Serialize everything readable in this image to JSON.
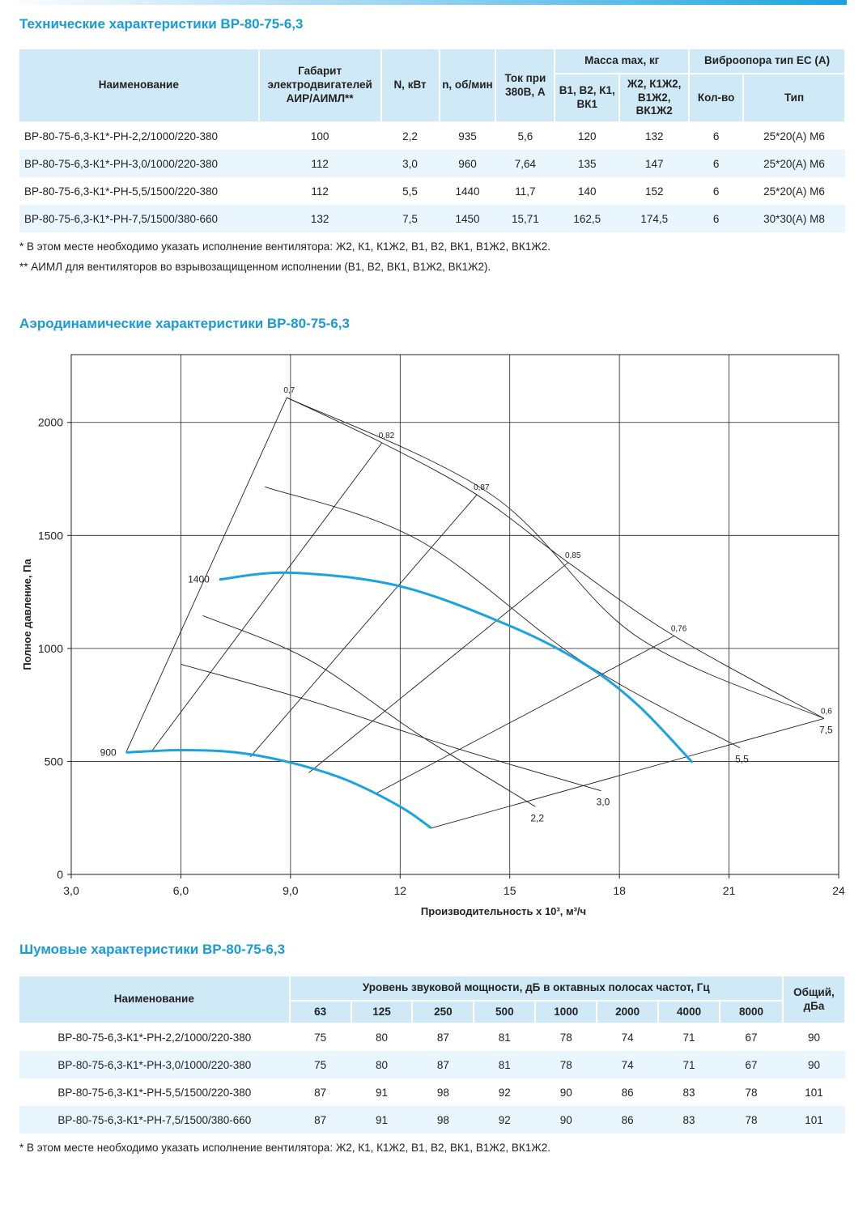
{
  "tech": {
    "title": "Технические характеристики ВР-80-75-6,3",
    "headers": {
      "name": "Наименование",
      "gabarit": "Габарит электродвигателей АИР/АИМЛ**",
      "power": "N, кВт",
      "speed": "n, об/мин",
      "current": "Ток при 380В, А",
      "mass": "Масса max, кг",
      "mass_a": "В1, В2, К1, ВК1",
      "mass_b": "Ж2, К1Ж2, В1Ж2, ВК1Ж2",
      "vibro": "Виброопора тип ЕС (А)",
      "vibro_qty": "Кол-во",
      "vibro_type": "Тип"
    },
    "rows": [
      {
        "name": "ВР-80-75-6,3-К1*-РН-2,2/1000/220-380",
        "gabarit": "100",
        "power": "2,2",
        "speed": "935",
        "current": "5,6",
        "mass_a": "120",
        "mass_b": "132",
        "qty": "6",
        "type": "25*20(А) М6"
      },
      {
        "name": "ВР-80-75-6,3-К1*-РН-3,0/1000/220-380",
        "gabarit": "112",
        "power": "3,0",
        "speed": "960",
        "current": "7,64",
        "mass_a": "135",
        "mass_b": "147",
        "qty": "6",
        "type": "25*20(А) М6"
      },
      {
        "name": "ВР-80-75-6,3-К1*-РН-5,5/1500/220-380",
        "gabarit": "112",
        "power": "5,5",
        "speed": "1440",
        "current": "11,7",
        "mass_a": "140",
        "mass_b": "152",
        "qty": "6",
        "type": "25*20(А) М6"
      },
      {
        "name": "ВР-80-75-6,3-К1*-РН-7,5/1500/380-660",
        "gabarit": "132",
        "power": "7,5",
        "speed": "1450",
        "current": "15,71",
        "mass_a": "162,5",
        "mass_b": "174,5",
        "qty": "6",
        "type": "30*30(А) М8"
      }
    ],
    "note1": "* В этом месте необходимо указать исполнение вентилятора: Ж2, К1, К1Ж2, В1, В2, ВК1, В1Ж2, ВК1Ж2.",
    "note2": "** АИМЛ для вентиляторов во взрывозащищенном исполнении (В1, В2, ВК1, В1Ж2, ВК1Ж2)."
  },
  "aero": {
    "title": "Аэродинамические характеристики ВР-80-75-6,3"
  },
  "chart_data": {
    "type": "line",
    "xlabel": "Производительность х 10³, м³/ч",
    "ylabel": "Полное давление, Па",
    "xlim": [
      3,
      24
    ],
    "ylim": [
      0,
      2300
    ],
    "x_ticks": [
      "3,0",
      "6,0",
      "9,0",
      "12",
      "15",
      "18",
      "21",
      "24"
    ],
    "y_ticks": [
      "0",
      "500",
      "1000",
      "1500",
      "2000"
    ],
    "grid": true,
    "colors": {
      "speed_curve": "#1ba3e0",
      "grid": "#222222",
      "thin": "#222222"
    },
    "speed_curves": [
      {
        "label": "1400",
        "x": [
          7.05,
          9.0,
          12.0,
          15.0,
          17.0,
          18.5,
          20.0
        ],
        "y": [
          1305,
          1335,
          1275,
          1100,
          935,
          750,
          495
        ]
      },
      {
        "label": "900",
        "x": [
          4.5,
          6.0,
          7.5,
          9.0,
          10.5,
          12.0,
          12.85
        ],
        "y": [
          540,
          550,
          540,
          495,
          420,
          300,
          205
        ]
      }
    ],
    "efficiency_rays": [
      {
        "label": "0,7",
        "x": [
          4.5,
          8.9
        ],
        "y": [
          540,
          2110
        ]
      },
      {
        "label": "0,82",
        "x": [
          5.2,
          11.5
        ],
        "y": [
          545,
          1910
        ]
      },
      {
        "label": "0,87",
        "x": [
          7.9,
          14.1
        ],
        "y": [
          520,
          1680
        ]
      },
      {
        "label": "0,85",
        "x": [
          9.5,
          16.6
        ],
        "y": [
          450,
          1380
        ]
      },
      {
        "label": "0,76",
        "x": [
          11.3,
          19.5
        ],
        "y": [
          355,
          1055
        ]
      },
      {
        "label": "0,6",
        "x": [
          12.85,
          23.6
        ],
        "y": [
          205,
          690
        ]
      }
    ],
    "power_curves": [
      {
        "label": "2,2",
        "x": [
          6.6,
          9.5,
          12.5,
          15.7
        ],
        "y": [
          1145,
          950,
          620,
          300
        ]
      },
      {
        "label": "3,0",
        "x": [
          6.0,
          9.5,
          13.5,
          17.5
        ],
        "y": [
          930,
          770,
          560,
          370
        ]
      },
      {
        "label": "5,5",
        "x": [
          8.3,
          12.5,
          17.0,
          21.3
        ],
        "y": [
          1715,
          1480,
          940,
          560
        ]
      },
      {
        "label": "7,5",
        "x": [
          8.9,
          14.5,
          18.5,
          23.6
        ],
        "y": [
          2110,
          1680,
          1050,
          690
        ]
      }
    ],
    "boundary_9_to_6": [
      {
        "label": "0,82",
        "x": 11.5,
        "y": 1910
      },
      {
        "label": "0,87",
        "x": 14.1,
        "y": 1680
      },
      {
        "label": "0,85",
        "x": 16.6,
        "y": 1380
      }
    ]
  },
  "noise": {
    "title": "Шумовые характеристики ВР-80-75-6,3",
    "headers": {
      "name": "Наименование",
      "level": "Уровень звуковой мощности, дБ в октавных полосах частот, Гц",
      "total": "Общий, дБа",
      "freqs": [
        "63",
        "125",
        "250",
        "500",
        "1000",
        "2000",
        "4000",
        "8000"
      ]
    },
    "rows": [
      {
        "name": "ВР-80-75-6,3-К1*-РН-2,2/1000/220-380",
        "values": [
          "75",
          "80",
          "87",
          "81",
          "78",
          "74",
          "71",
          "67"
        ],
        "total": "90"
      },
      {
        "name": "ВР-80-75-6,3-К1*-РН-3,0/1000/220-380",
        "values": [
          "75",
          "80",
          "87",
          "81",
          "78",
          "74",
          "71",
          "67"
        ],
        "total": "90"
      },
      {
        "name": "ВР-80-75-6,3-К1*-РН-5,5/1500/220-380",
        "values": [
          "87",
          "91",
          "98",
          "92",
          "90",
          "86",
          "83",
          "78"
        ],
        "total": "101"
      },
      {
        "name": "ВР-80-75-6,3-К1*-РН-7,5/1500/380-660",
        "values": [
          "87",
          "91",
          "98",
          "92",
          "90",
          "86",
          "83",
          "78"
        ],
        "total": "101"
      }
    ],
    "note": "* В этом месте необходимо указать исполнение вентилятора: Ж2, К1, К1Ж2, В1, В2, ВК1, В1Ж2, ВК1Ж2."
  }
}
